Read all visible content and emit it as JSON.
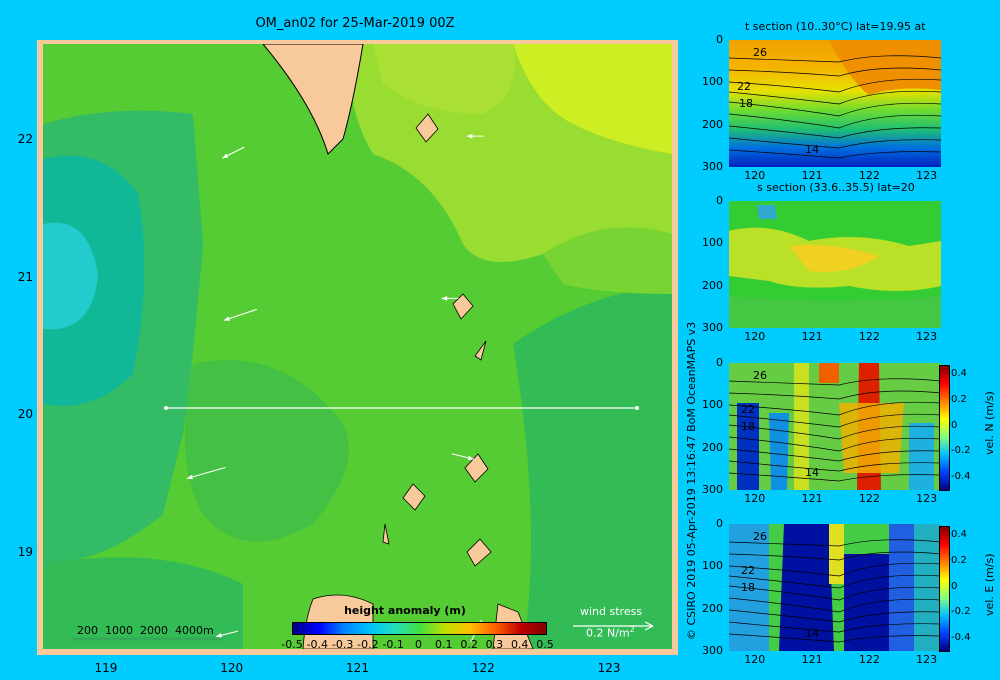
{
  "main": {
    "title": "OM_an02 for 25-Mar-2019 00Z",
    "xticks": [
      "119",
      "120",
      "121",
      "122",
      "123"
    ],
    "yticks": [
      "22",
      "21",
      "20",
      "19"
    ],
    "depth_legend": "200  1000  2000  4000m",
    "colorbar": {
      "label": "height anomaly (m)",
      "ticks": [
        "-0.5",
        "-0.4",
        "-0.3",
        "-0.2",
        "-0.1",
        "0",
        "0.1",
        "0.2",
        "0.3",
        "0.4",
        "0.5"
      ]
    },
    "wind": {
      "label": "wind stress",
      "scale": "0.2 N/m",
      "scale_sup": "2"
    }
  },
  "panels": [
    {
      "id": "t-section",
      "title": "t section (10..30°C) lat=19.95 at",
      "contour_labels": [
        "26",
        "22",
        "18",
        "14"
      ]
    },
    {
      "id": "s-section",
      "title": "s section (33.6..35.5) lat=20",
      "contour_labels": []
    },
    {
      "id": "vel-n",
      "title": "",
      "colorbar_label": "vel. N (m/s)",
      "contour_labels": [
        "26",
        "22",
        "18",
        "14"
      ]
    },
    {
      "id": "vel-e",
      "title": "",
      "colorbar_label": "vel. E (m/s)",
      "contour_labels": [
        "26",
        "22",
        "18",
        "14"
      ]
    }
  ],
  "section_axes": {
    "yticks": [
      "0",
      "100",
      "200",
      "300"
    ],
    "xticks": [
      "120",
      "121",
      "122",
      "123"
    ],
    "vel_ticks": [
      "0.4",
      "0.2",
      "0",
      "-0.2",
      "-0.4"
    ]
  },
  "side_credit": "© CSIRO 2019   05-Apr-2019 13:16:47 BoM OceanMAPS v3",
  "chart_data": [
    {
      "type": "heatmap",
      "title": "OM_an02 for 25-Mar-2019 00Z",
      "variable": "height anomaly (m)",
      "xlim": [
        118.5,
        123.5
      ],
      "ylim": [
        18.3,
        22.7
      ],
      "x_ticks": [
        119,
        120,
        121,
        122,
        123
      ],
      "y_ticks": [
        19,
        20,
        21,
        22
      ],
      "color_range": [
        -0.5,
        0.5
      ],
      "section_line": {
        "lat": 20,
        "lon_from": 119.5,
        "lon_to": 123.2
      },
      "wind_arrows": [
        {
          "lon": 120.1,
          "lat": 21.95,
          "u": -0.2,
          "v": -0.1
        },
        {
          "lon": 122.0,
          "lat": 22.03,
          "u": -0.15,
          "v": 0.0
        },
        {
          "lon": 120.2,
          "lat": 20.77,
          "u": -0.3,
          "v": -0.1
        },
        {
          "lon": 121.8,
          "lat": 20.85,
          "u": -0.15,
          "v": 0.0
        },
        {
          "lon": 119.95,
          "lat": 19.62,
          "u": -0.35,
          "v": -0.1
        },
        {
          "lon": 121.75,
          "lat": 19.72,
          "u": 0.2,
          "v": -0.05
        },
        {
          "lon": 120.05,
          "lat": 18.43,
          "u": -0.2,
          "v": -0.05
        },
        {
          "lon": 121.9,
          "lat": 18.35,
          "u": 0.1,
          "v": 0.2
        }
      ]
    },
    {
      "type": "heatmap",
      "title": "t section (10..30°C) lat=19.95 at",
      "x_ticks": [
        120,
        121,
        122,
        123
      ],
      "y_ticks": [
        0,
        100,
        200,
        300
      ],
      "color_range": [
        10,
        30
      ],
      "contour_labels": [
        26,
        22,
        18,
        14
      ]
    },
    {
      "type": "heatmap",
      "title": "s section (33.6..35.5) lat=20",
      "x_ticks": [
        120,
        121,
        122,
        123
      ],
      "y_ticks": [
        0,
        100,
        200,
        300
      ],
      "color_range": [
        33.6,
        35.5
      ]
    },
    {
      "type": "heatmap",
      "ylabel": "vel. N (m/s)",
      "x_ticks": [
        120,
        121,
        122,
        123
      ],
      "y_ticks": [
        0,
        100,
        200,
        300
      ],
      "color_range": [
        -0.4,
        0.4
      ]
    },
    {
      "type": "heatmap",
      "ylabel": "vel. E (m/s)",
      "x_ticks": [
        120,
        121,
        122,
        123
      ],
      "y_ticks": [
        0,
        100,
        200,
        300
      ],
      "color_range": [
        -0.4,
        0.4
      ]
    }
  ]
}
